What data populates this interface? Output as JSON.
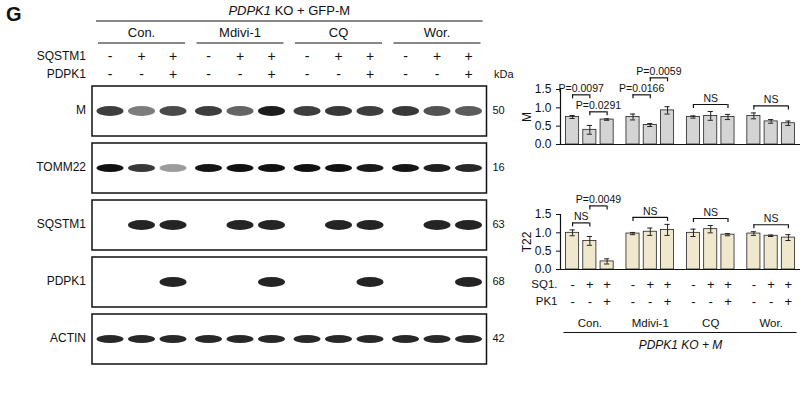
{
  "panel": "G",
  "blot": {
    "title": "PDPK1 KO + GFP-M",
    "groups": [
      "Con.",
      "Mdivi-1",
      "CQ",
      "Wor."
    ],
    "lane_rows": [
      {
        "label": "SQSTM1",
        "signs": [
          "-",
          "+",
          "+",
          "-",
          "+",
          "+",
          "-",
          "+",
          "+",
          "-",
          "+",
          "+"
        ]
      },
      {
        "label": "PDPK1",
        "signs": [
          "-",
          "-",
          "+",
          "-",
          "-",
          "+",
          "-",
          "-",
          "+",
          "-",
          "-",
          "+"
        ]
      }
    ],
    "unit": "kDa",
    "rows": [
      {
        "label": "M",
        "kda": 50
      },
      {
        "label": "TOMM22",
        "kda": 16
      },
      {
        "label": "SQSTM1",
        "kda": 63
      },
      {
        "label": "PDPK1",
        "kda": 68
      },
      {
        "label": "ACTIN",
        "kda": 42
      }
    ]
  },
  "chart_data": [
    {
      "type": "bar",
      "ylabel": "M",
      "color": "#d4d4d4",
      "ylim": [
        0,
        1.5
      ],
      "yticks": [
        {
          "value": 0,
          "label": "0.0"
        },
        {
          "value": 0.5,
          "label": "0.5"
        },
        {
          "value": 1,
          "label": "1.0"
        },
        {
          "value": 1.5,
          "label": "1.5"
        }
      ],
      "values": [
        0.75,
        0.4,
        0.68,
        0.75,
        0.53,
        0.93,
        0.75,
        0.78,
        0.75,
        0.78,
        0.63,
        0.58
      ],
      "errors": [
        0.04,
        0.12,
        0.02,
        0.08,
        0.04,
        0.1,
        0.03,
        0.12,
        0.07,
        0.08,
        0.05,
        0.06
      ],
      "annotations": [
        {
          "text": "P=0.0291",
          "between": [
            1,
            2
          ]
        },
        {
          "text": "P=0.0097",
          "between": [
            0,
            1
          ]
        },
        {
          "text": "P=0.0166",
          "between": [
            3,
            4
          ]
        },
        {
          "text": "P=0.0059",
          "between": [
            4,
            5
          ]
        },
        {
          "text": "NS",
          "between": [
            6,
            8
          ]
        },
        {
          "text": "NS",
          "between": [
            9,
            11
          ]
        }
      ]
    },
    {
      "type": "bar",
      "ylabel": "T22",
      "color": "#efe8cc",
      "ylim": [
        0,
        1.5
      ],
      "yticks": [
        {
          "value": 0,
          "label": "0.0"
        },
        {
          "value": 0.5,
          "label": "0.5"
        },
        {
          "value": 1,
          "label": "1.0"
        },
        {
          "value": 1.5,
          "label": "1.5"
        }
      ],
      "values": [
        1.0,
        0.78,
        0.22,
        0.98,
        1.03,
        1.08,
        1.0,
        1.1,
        0.95,
        0.98,
        0.92,
        0.87
      ],
      "errors": [
        0.08,
        0.12,
        0.07,
        0.03,
        0.1,
        0.15,
        0.1,
        0.1,
        0.03,
        0.05,
        0.02,
        0.08
      ],
      "annotations": [
        {
          "text": "NS",
          "between": [
            0,
            1
          ]
        },
        {
          "text": "P=0.0049",
          "between": [
            1,
            2
          ]
        },
        {
          "text": "NS",
          "between": [
            3,
            5
          ]
        },
        {
          "text": "NS",
          "between": [
            6,
            8
          ]
        },
        {
          "text": "NS",
          "between": [
            9,
            11
          ]
        }
      ],
      "x_rows": [
        {
          "label": "SQ1.",
          "signs": [
            "-",
            "+",
            "+",
            "-",
            "+",
            "+",
            "-",
            "+",
            "+",
            "-",
            "+",
            "+"
          ]
        },
        {
          "label": "PK1",
          "signs": [
            "-",
            "-",
            "+",
            "-",
            "-",
            "+",
            "-",
            "-",
            "+",
            "-",
            "-",
            "+"
          ]
        }
      ],
      "groups": [
        "Con.",
        "Mdivi-1",
        "CQ",
        "Wor."
      ],
      "footer": "PDPK1 KO + M"
    }
  ]
}
